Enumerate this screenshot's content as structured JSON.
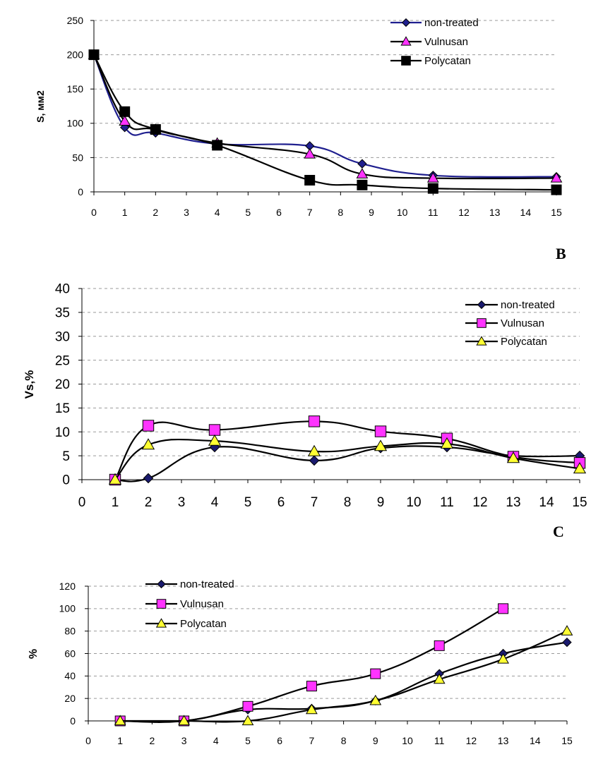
{
  "panel_labels": [
    "B",
    "C"
  ],
  "chart_data": [
    {
      "type": "line",
      "title": "",
      "xlabel": "",
      "ylabel": "S, мм2",
      "xlim": [
        0,
        15
      ],
      "ylim": [
        0,
        250
      ],
      "x_ticks": [
        "0",
        "1",
        "2",
        "3",
        "4",
        "5",
        "6",
        "7",
        "8",
        "9",
        "10",
        "11",
        "12",
        "13",
        "14",
        "15"
      ],
      "y_ticks": [
        "0",
        "50",
        "100",
        "150",
        "200",
        "250"
      ],
      "grid": "horizontal dashed",
      "legend_position": "top-right",
      "series": [
        {
          "name": "non-treated",
          "color": "#1f1f8f",
          "marker": "diamond",
          "x": [
            0,
            1,
            2,
            4,
            7,
            8.7,
            11,
            15
          ],
          "y": [
            200,
            94,
            86,
            70,
            67,
            41,
            24,
            22
          ]
        },
        {
          "name": "Vulnusan",
          "color": "#000000",
          "markerColor": "#ff33ff",
          "marker": "triangle",
          "x": [
            0,
            1,
            2,
            4,
            7,
            8.7,
            11,
            15
          ],
          "y": [
            200,
            103,
            91,
            71,
            55,
            26,
            20,
            20
          ]
        },
        {
          "name": "Polycatan",
          "color": "#000000",
          "markerColor": "#000000",
          "marker": "square",
          "x": [
            0,
            1,
            2,
            4,
            7,
            8.7,
            11,
            15
          ],
          "y": [
            200,
            117,
            91,
            68,
            17,
            10,
            5,
            3
          ]
        }
      ]
    },
    {
      "type": "line",
      "title": "",
      "xlabel": "",
      "ylabel": "Vs,%",
      "xlim": [
        0,
        15
      ],
      "ylim": [
        0,
        40
      ],
      "x_ticks": [
        "0",
        "1",
        "2",
        "3",
        "4",
        "5",
        "6",
        "7",
        "8",
        "9",
        "10",
        "11",
        "12",
        "13",
        "14",
        "15"
      ],
      "y_ticks": [
        "0",
        "5",
        "10",
        "15",
        "20",
        "25",
        "30",
        "35",
        "40"
      ],
      "grid": "horizontal dashed",
      "legend_position": "top-right",
      "series": [
        {
          "name": "non-treated",
          "color": "#000000",
          "markerColor": "#1a1a6e",
          "marker": "diamond",
          "x": [
            1,
            2,
            4,
            7,
            9,
            11,
            13,
            15
          ],
          "y": [
            0,
            0.3,
            6.8,
            4.0,
            6.6,
            6.8,
            5.0,
            5.0
          ]
        },
        {
          "name": "Vulnusan",
          "color": "#000000",
          "markerColor": "#ff33ff",
          "marker": "square",
          "x": [
            1,
            2,
            4,
            7,
            9,
            11,
            13,
            15
          ],
          "y": [
            0,
            11.3,
            10.4,
            12.2,
            10.1,
            8.6,
            4.8,
            3.5
          ]
        },
        {
          "name": "Polycatan",
          "color": "#000000",
          "markerColor": "#ffff33",
          "marker": "triangle",
          "x": [
            1,
            2,
            4,
            7,
            9,
            11,
            13,
            15
          ],
          "y": [
            0,
            7.3,
            8.1,
            5.9,
            7.0,
            7.5,
            4.5,
            2.3
          ]
        }
      ]
    },
    {
      "type": "line",
      "title": "",
      "xlabel": "",
      "ylabel": "%",
      "xlim": [
        0,
        15
      ],
      "ylim": [
        0,
        120
      ],
      "x_ticks": [
        "0",
        "1",
        "2",
        "3",
        "4",
        "5",
        "6",
        "7",
        "8",
        "9",
        "10",
        "11",
        "12",
        "13",
        "14",
        "15"
      ],
      "y_ticks": [
        "0",
        "20",
        "40",
        "60",
        "80",
        "100",
        "120"
      ],
      "grid": "horizontal dashed",
      "legend_position": "top-left",
      "series": [
        {
          "name": "non-treated",
          "color": "#000000",
          "markerColor": "#1a1a6e",
          "marker": "diamond",
          "x": [
            1,
            3,
            5,
            7,
            9,
            11,
            13,
            15
          ],
          "y": [
            0,
            0,
            10,
            11,
            18,
            42,
            60,
            70
          ]
        },
        {
          "name": "Vulnusan",
          "color": "#000000",
          "markerColor": "#ff33ff",
          "marker": "square",
          "x": [
            1,
            3,
            5,
            7,
            9,
            11,
            13
          ],
          "y": [
            0,
            0,
            13,
            31,
            42,
            67,
            100
          ]
        },
        {
          "name": "Polycatan",
          "color": "#000000",
          "markerColor": "#ffff33",
          "marker": "triangle",
          "x": [
            1,
            3,
            5,
            7,
            9,
            11,
            13,
            15
          ],
          "y": [
            0,
            0,
            0,
            10,
            18,
            37,
            55,
            80
          ]
        }
      ]
    }
  ]
}
